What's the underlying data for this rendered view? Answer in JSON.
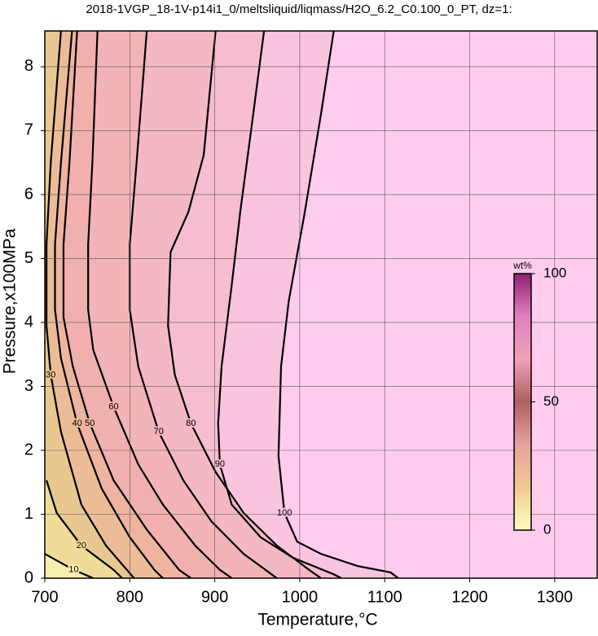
{
  "chart_data": {
    "type": "contour",
    "title": "2018-1VGP_18-1V-p14i1_0/meltsliquid/liqmass/H2O_6.2_C0.100_0_PT, dz=1:",
    "xlabel": "Temperature,°C",
    "ylabel": "Pressure,x100MPa",
    "xlim": [
      700,
      1350
    ],
    "ylim": [
      0,
      8.56
    ],
    "xticks": [
      700,
      800,
      900,
      1000,
      1100,
      1200,
      1300
    ],
    "yticks": [
      0,
      1,
      2,
      3,
      4,
      5,
      6,
      7,
      8
    ],
    "grid": true,
    "background": "#ffccee",
    "contours": [
      {
        "level": 100,
        "color": "#f9c4de",
        "x": [
          1040,
          1025,
          1006,
          987,
          978,
          975,
          982,
          997,
          1025,
          1068,
          1107,
          1116
        ],
        "y": [
          8.56,
          7.26,
          5.73,
          4.33,
          3.31,
          1.91,
          1.02,
          0.57,
          0.38,
          0.19,
          0.09,
          0
        ]
      },
      {
        "level": 90,
        "color": "#f6bcd0",
        "x": [
          958,
          944,
          930,
          920,
          908,
          904,
          906,
          920,
          954,
          992,
          1040,
          1049
        ],
        "y": [
          8.56,
          7.13,
          5.73,
          4.59,
          3.31,
          2.42,
          1.78,
          1.15,
          0.64,
          0.32,
          0.06,
          0
        ]
      },
      {
        "level": 80,
        "color": "#f4b8c4",
        "x": [
          901,
          887,
          869,
          848,
          845,
          853,
          872,
          901,
          934,
          973,
          1011,
          1025
        ],
        "y": [
          8.56,
          6.62,
          5.73,
          5.1,
          3.95,
          3.18,
          2.42,
          1.66,
          1.02,
          0.51,
          0.13,
          0
        ]
      },
      {
        "level": 70,
        "color": "#f2b4b8",
        "x": [
          820,
          808,
          800,
          800,
          810,
          834,
          863,
          896,
          934,
          973
        ],
        "y": [
          8.56,
          6.5,
          5.22,
          4.2,
          3.31,
          2.29,
          1.53,
          0.89,
          0.38,
          0
        ]
      },
      {
        "level": 60,
        "color": "#f0b0ae",
        "x": [
          762,
          756,
          751,
          751,
          757,
          781,
          810,
          839,
          877,
          906,
          920
        ],
        "y": [
          8.56,
          6.5,
          5.22,
          4.2,
          3.57,
          2.68,
          1.78,
          1.15,
          0.51,
          0.13,
          0
        ]
      },
      {
        "level": 50,
        "color": "#eeb4a0",
        "x": [
          738,
          729,
          722,
          722,
          733,
          753,
          781,
          820,
          858,
          872
        ],
        "y": [
          8.56,
          6.5,
          5.22,
          4.08,
          3.31,
          2.42,
          1.53,
          0.76,
          0.13,
          0
        ]
      },
      {
        "level": 40,
        "color": "#ecbc98",
        "x": [
          732,
          719,
          712,
          712,
          719,
          738,
          767,
          800,
          829,
          839
        ],
        "y": [
          8.56,
          6.5,
          5.22,
          4.2,
          3.44,
          2.42,
          1.4,
          0.64,
          0.13,
          0
        ]
      },
      {
        "level": 30,
        "color": "#e8c890",
        "x": [
          719,
          707,
          702,
          702,
          707,
          719,
          743,
          772,
          805
        ],
        "y": [
          8.56,
          6.5,
          5.22,
          3.95,
          3.18,
          2.29,
          1.15,
          0.51,
          0
        ]
      },
      {
        "level": 20,
        "color": "#f0dc98",
        "x": [
          702,
          714,
          743,
          781,
          791
        ],
        "y": [
          1.53,
          1.02,
          0.51,
          0.13,
          0
        ]
      },
      {
        "level": 10,
        "color": "#f8eeb0",
        "x": [
          700,
          734,
          757
        ],
        "y": [
          0.38,
          0.13,
          0
        ]
      }
    ],
    "colorbar": {
      "label": "wt%",
      "lim": [
        0,
        100
      ],
      "ticks": [
        0,
        50,
        100
      ],
      "colors": [
        "#ffffc0",
        "#f0c890",
        "#e8a0a0",
        "#b06060",
        "#f0a0b8",
        "#e080c0",
        "#902070"
      ]
    }
  }
}
